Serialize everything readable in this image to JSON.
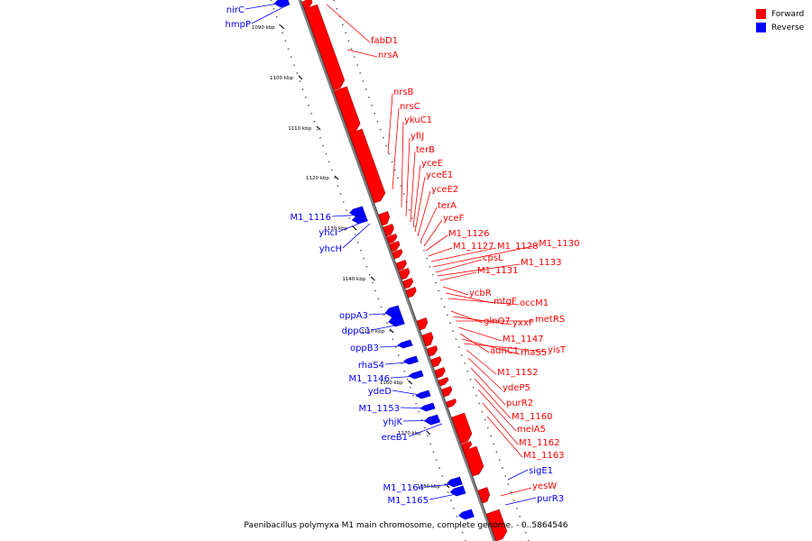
{
  "caption": "Paenibacillus polymyxa M1 main chromosome, complete genome. - 0..5864546",
  "legend": [
    {
      "label": "Forward",
      "color": "#ff0000"
    },
    {
      "label": "Reverse",
      "color": "#0000ff"
    }
  ],
  "colors": {
    "forward": "#ff0000",
    "reverse": "#0000ff",
    "backbone": "#808080"
  },
  "ticks": [
    {
      "label": "1090 kbp",
      "kbp": 1090
    },
    {
      "label": "1100 kbp",
      "kbp": 1100
    },
    {
      "label": "1110 kbp",
      "kbp": 1110
    },
    {
      "label": "1120 kbp",
      "kbp": 1120
    },
    {
      "label": "1130 kbp",
      "kbp": 1130
    },
    {
      "label": "1140 kbp",
      "kbp": 1140
    },
    {
      "label": "1150 kbp",
      "kbp": 1150
    },
    {
      "label": "1160 kbp",
      "kbp": 1160
    },
    {
      "label": "1170 kbp",
      "kbp": 1170
    },
    {
      "label": "1180 kbp",
      "kbp": 1180
    }
  ],
  "forward_genes": [
    "fabD1",
    "nrsA",
    "nrsB",
    "nrsC",
    "ykuC1",
    "yfiJ",
    "terB",
    "yceE",
    "yceE1",
    "yceE2",
    "terA",
    "yceF",
    "M1_1126",
    "M1_1127",
    "M1_1128",
    "M1_1130",
    "cpsL",
    "M1_1133",
    "M1_1131",
    "ycbR",
    "mtgF",
    "occM1",
    "glnQ7",
    "yxxF",
    "metRS",
    "M1_1147",
    "adhC1",
    "rhaS5",
    "yisT",
    "M1_1152",
    "ydeP5",
    "purR2",
    "M1_1160",
    "melA5",
    "M1_1162",
    "M1_1163",
    "yesW"
  ],
  "reverse_genes": [
    "nirC",
    "hmpP",
    "M1_1116",
    "yhcI",
    "yhcH",
    "oppA3",
    "dppC1",
    "oppB3",
    "rhaS4",
    "M1_1146",
    "ydeD",
    "M1_1153",
    "yhjK",
    "ereB1",
    "sigE1",
    "M1_1164",
    "M1_1165",
    "purR3"
  ]
}
